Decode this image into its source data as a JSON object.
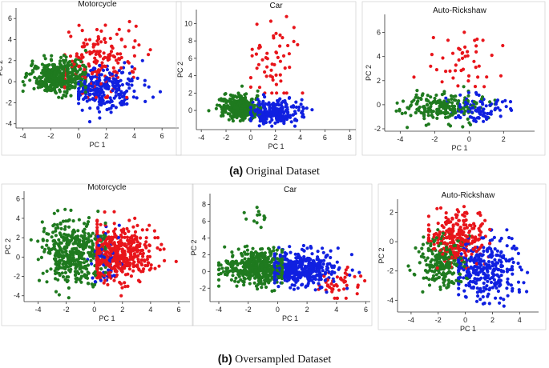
{
  "colors": {
    "green": "#1f7a1f",
    "red": "#e8151b",
    "blue": "#1020e0",
    "axis": "#333333",
    "frame": "#c8c8c8"
  },
  "captions": {
    "a": {
      "label": "(a)",
      "text": "Original Dataset"
    },
    "b": {
      "label": "(b)",
      "text": "Oversampled Dataset"
    }
  },
  "chart_data": [
    {
      "type": "scatter",
      "title": "Motorcycle",
      "xlabel": "PC 1",
      "ylabel": "PC 2",
      "xlim": [
        -4.5,
        7.2
      ],
      "ylim": [
        -4.4,
        7.0
      ],
      "xticks": [
        -4,
        -2,
        0,
        2,
        4,
        6
      ],
      "yticks": [
        -4,
        -2,
        0,
        2,
        4,
        6
      ],
      "clusters": [
        {
          "color": "green",
          "n": 420,
          "cx": -1.3,
          "cy": 0.5,
          "sx": 1.0,
          "sy": 0.8,
          "xr": [
            -4,
            0.5
          ],
          "yr": [
            -2.5,
            5
          ]
        },
        {
          "color": "blue",
          "n": 260,
          "cx": 1.8,
          "cy": -0.7,
          "sx": 1.2,
          "sy": 1.0,
          "xr": [
            0,
            6
          ],
          "yr": [
            -4,
            2
          ]
        },
        {
          "color": "red",
          "n": 160,
          "cx": 1.6,
          "cy": 1.8,
          "sx": 1.3,
          "sy": 1.6,
          "xr": [
            -1,
            6.5
          ],
          "yr": [
            -1.5,
            6.3
          ]
        }
      ]
    },
    {
      "type": "scatter",
      "title": "Car",
      "xlabel": "PC 1",
      "ylabel": "PC 2",
      "xlim": [
        -4.4,
        8.5
      ],
      "ylim": [
        -2.2,
        11.6
      ],
      "xticks": [
        -4,
        -2,
        0,
        2,
        4,
        6,
        8
      ],
      "yticks": [
        0,
        2,
        4,
        6,
        8,
        10
      ],
      "clusters": [
        {
          "color": "green",
          "n": 320,
          "cx": -0.9,
          "cy": 0.4,
          "sx": 0.8,
          "sy": 0.7,
          "xr": [
            -3.5,
            0.8
          ],
          "yr": [
            -1.2,
            4.5
          ]
        },
        {
          "color": "blue",
          "n": 260,
          "cx": 1.7,
          "cy": -0.2,
          "sx": 1.2,
          "sy": 0.7,
          "xr": [
            0,
            8
          ],
          "yr": [
            -1.8,
            3
          ]
        },
        {
          "color": "red",
          "n": 55,
          "cx": 1.9,
          "cy": 6.0,
          "sx": 1.1,
          "sy": 2.2,
          "xr": [
            0,
            5
          ],
          "yr": [
            2,
            10.8
          ]
        }
      ]
    },
    {
      "type": "scatter",
      "title": "Auto-Rickshaw",
      "xlabel": "PC 1",
      "ylabel": "PC 2",
      "xlim": [
        -4.9,
        3.8
      ],
      "ylim": [
        -2.2,
        7.5
      ],
      "xticks": [
        -4,
        -2,
        0,
        2
      ],
      "yticks": [
        -2,
        0,
        2,
        4,
        6
      ],
      "clusters": [
        {
          "color": "green",
          "n": 200,
          "cx": -1.6,
          "cy": -0.2,
          "sx": 1.1,
          "sy": 0.6,
          "xr": [
            -4.5,
            1.5
          ],
          "yr": [
            -2,
            1.5
          ]
        },
        {
          "color": "blue",
          "n": 90,
          "cx": 0.4,
          "cy": -0.3,
          "sx": 0.9,
          "sy": 0.6,
          "xr": [
            -1.5,
            3
          ],
          "yr": [
            -2,
            1
          ]
        },
        {
          "color": "red",
          "n": 45,
          "cx": -0.5,
          "cy": 3.8,
          "sx": 1.2,
          "sy": 1.3,
          "xr": [
            -3.2,
            3.5
          ],
          "yr": [
            1.5,
            6.4
          ]
        }
      ]
    },
    {
      "type": "scatter",
      "title": "Motorcycle",
      "xlabel": "PC 1",
      "ylabel": "PC 2",
      "xlim": [
        -5.0,
        6.8
      ],
      "ylim": [
        -4.6,
        6.8
      ],
      "xticks": [
        -4,
        -2,
        0,
        2,
        4,
        6
      ],
      "yticks": [
        -4,
        -2,
        0,
        2,
        4,
        6
      ],
      "clusters": [
        {
          "color": "green",
          "n": 420,
          "cx": -1.4,
          "cy": 0.4,
          "sx": 1.1,
          "sy": 1.6,
          "xr": [
            -4.5,
            0.8
          ],
          "yr": [
            -4.2,
            6.3
          ]
        },
        {
          "color": "red",
          "n": 480,
          "cx": 1.6,
          "cy": 0.2,
          "sx": 1.3,
          "sy": 1.5,
          "xr": [
            0.2,
            6.3
          ],
          "yr": [
            -4,
            5
          ]
        },
        {
          "color": "blue",
          "n": 50,
          "cx": 0.6,
          "cy": 0.5,
          "sx": 0.6,
          "sy": 1.5,
          "xr": [
            -0.5,
            2.5
          ],
          "yr": [
            -3,
            4.5
          ]
        }
      ]
    },
    {
      "type": "scatter",
      "title": "Car",
      "xlabel": "PC 1",
      "ylabel": "PC 2",
      "xlim": [
        -4.6,
        6.3
      ],
      "ylim": [
        -3.6,
        9.3
      ],
      "xticks": [
        -4,
        -2,
        0,
        2,
        4,
        6
      ],
      "yticks": [
        -2,
        0,
        2,
        4,
        6,
        8
      ],
      "clusters": [
        {
          "color": "green",
          "n": 480,
          "cx": -1.4,
          "cy": 0.4,
          "sx": 1.1,
          "sy": 1.0,
          "xr": [
            -4,
            0.3
          ],
          "yr": [
            -3,
            4
          ]
        },
        {
          "color": "blue",
          "n": 420,
          "cx": 1.6,
          "cy": 0.3,
          "sx": 1.2,
          "sy": 1.0,
          "xr": [
            -0.2,
            5.8
          ],
          "yr": [
            -3,
            3.5
          ]
        },
        {
          "color": "red",
          "n": 45,
          "cx": 4.3,
          "cy": -1.2,
          "sx": 0.8,
          "sy": 0.9,
          "xr": [
            2.5,
            6
          ],
          "yr": [
            -3.2,
            0.5
          ]
        },
        {
          "color": "green",
          "n": 12,
          "cx": -1.4,
          "cy": 6.3,
          "sx": 0.5,
          "sy": 1.0,
          "xr": [
            -2.5,
            -0.5
          ],
          "yr": [
            4.5,
            8.5
          ]
        }
      ]
    },
    {
      "type": "scatter",
      "title": "Auto-Rickshaw",
      "xlabel": "PC 1",
      "ylabel": "PC 2",
      "xlim": [
        -5.0,
        5.4
      ],
      "ylim": [
        -4.8,
        2.9
      ],
      "xticks": [
        -4,
        -2,
        0,
        2,
        4
      ],
      "yticks": [
        -4,
        -2,
        0,
        2
      ],
      "clusters": [
        {
          "color": "green",
          "n": 230,
          "cx": -1.7,
          "cy": -1.4,
          "sx": 0.9,
          "sy": 0.9,
          "xr": [
            -4.2,
            0.3
          ],
          "yr": [
            -3.5,
            1.2
          ]
        },
        {
          "color": "red",
          "n": 260,
          "cx": -0.5,
          "cy": 0.2,
          "sx": 1.0,
          "sy": 0.8,
          "xr": [
            -2.7,
            1.8
          ],
          "yr": [
            -1.8,
            2.4
          ]
        },
        {
          "color": "blue",
          "n": 320,
          "cx": 1.5,
          "cy": -1.9,
          "sx": 1.3,
          "sy": 1.0,
          "xr": [
            -0.5,
            5
          ],
          "yr": [
            -4.4,
            0.9
          ]
        }
      ]
    }
  ]
}
